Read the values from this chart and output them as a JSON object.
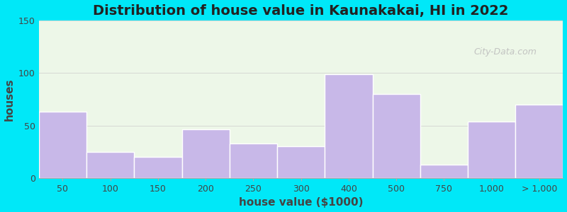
{
  "title": "Distribution of house value in Kaunakakai, HI in 2022",
  "xlabel": "house value ($1000)",
  "ylabel": "houses",
  "bar_labels": [
    "50",
    "100",
    "150",
    "200",
    "250",
    "300",
    "400",
    "500",
    "750",
    "1,000",
    "> 1,000"
  ],
  "bar_values": [
    63,
    25,
    20,
    46,
    33,
    30,
    99,
    80,
    13,
    54,
    70
  ],
  "bar_color": "#c8b8e8",
  "bar_edgecolor": "#ffffff",
  "background_outer": "#00e8f8",
  "background_axes": "#edf7e8",
  "ylim": [
    0,
    150
  ],
  "yticks": [
    0,
    50,
    100,
    150
  ],
  "title_fontsize": 14,
  "axis_label_fontsize": 11,
  "tick_fontsize": 9,
  "bar_lefts": [
    0,
    1,
    2,
    3,
    4,
    5,
    6,
    7,
    8,
    9,
    10
  ],
  "bar_widths": [
    1,
    1,
    1,
    1,
    1,
    1,
    1,
    1,
    1,
    1,
    1
  ],
  "tick_xpos": [
    0.5,
    1.5,
    2.5,
    3.5,
    4.5,
    5.5,
    6.5,
    7.5,
    8.5,
    9.5,
    10.5
  ],
  "watermark": "City-Data.com"
}
